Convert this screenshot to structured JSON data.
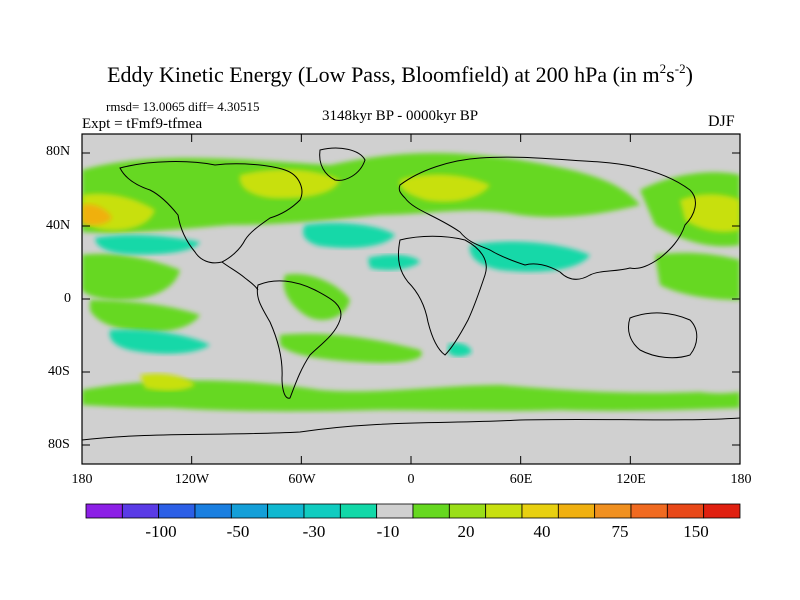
{
  "title": {
    "main": "Eddy Kinetic Energy (Low Pass, Bloomfield) at 200 hPa (in m",
    "sup1": "2",
    "mid": "s",
    "sup2": "-2",
    "tail": ")"
  },
  "stats": "rmsd= 13.0065 diff= 4.30515",
  "expt": "Expt = tFmf9-tfmea",
  "period": "3148kyr BP - 0000kyr BP",
  "season": "DJF",
  "lat_labels": [
    "80N",
    "40N",
    "0",
    "40S",
    "80S"
  ],
  "lon_labels": [
    "180",
    "120W",
    "60W",
    "0",
    "60E",
    "120E",
    "180"
  ],
  "colorbar": {
    "labels": [
      "-100",
      "-50",
      "-30",
      "-10",
      "20",
      "40",
      "75",
      "150"
    ],
    "colors": [
      "#8c1fe6",
      "#5a3be6",
      "#2c5fe6",
      "#1a7fe0",
      "#149fd8",
      "#10b8d0",
      "#10ccc0",
      "#12d8a8",
      "#d0d0d0",
      "#66d820",
      "#9ade18",
      "#c8e010",
      "#e8d010",
      "#f0b010",
      "#f09020",
      "#f06a20",
      "#e84818",
      "#e02010"
    ]
  },
  "colors": {
    "land_background": "#d0d0d0",
    "coast": "#000000"
  }
}
